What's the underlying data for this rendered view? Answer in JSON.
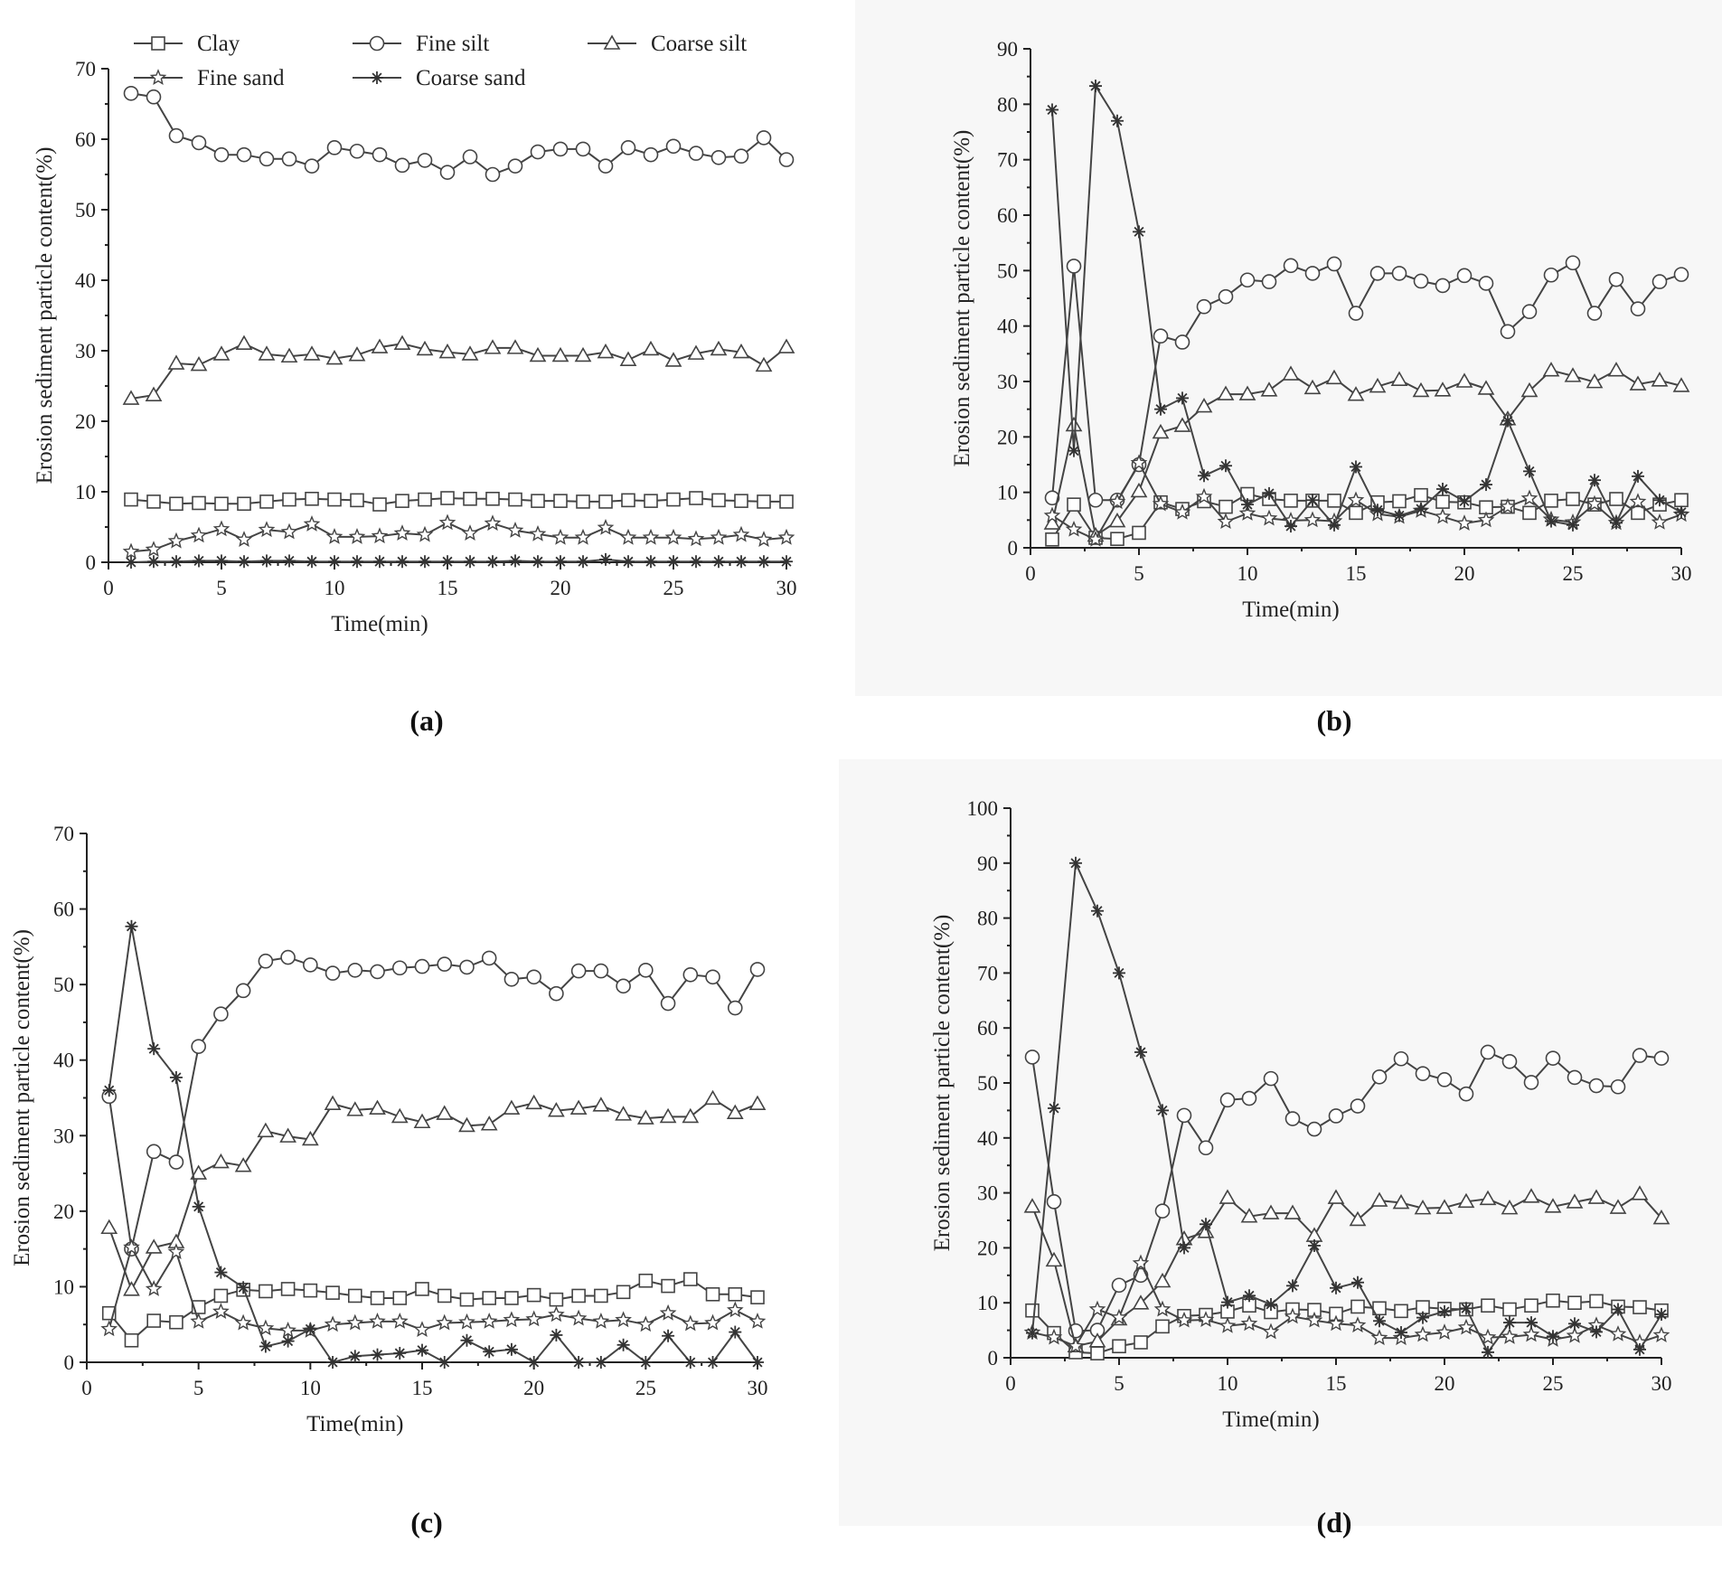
{
  "legend": {
    "items": [
      {
        "name": "Clay",
        "marker": "square"
      },
      {
        "name": "Fine silt",
        "marker": "circle"
      },
      {
        "name": "Coarse silt",
        "marker": "triangle"
      },
      {
        "name": "Fine sand",
        "marker": "star"
      },
      {
        "name": "Coarse sand",
        "marker": "asterisk"
      }
    ]
  },
  "chart_data": [
    {
      "id": "a",
      "type": "line",
      "caption": "(a)",
      "xlabel": "Time(min)",
      "ylabel": "Erosion sediment particle content(%)",
      "xlim": [
        0,
        30
      ],
      "ylim": [
        0,
        70
      ],
      "xticks": [
        0,
        5,
        10,
        15,
        20,
        25,
        30
      ],
      "yticks": [
        0,
        10,
        20,
        30,
        40,
        50,
        60,
        70
      ],
      "x": [
        1,
        2,
        3,
        4,
        5,
        6,
        7,
        8,
        9,
        10,
        11,
        12,
        13,
        14,
        15,
        16,
        17,
        18,
        19,
        20,
        21,
        22,
        23,
        24,
        25,
        26,
        27,
        28,
        29,
        30
      ],
      "series": [
        {
          "name": "Clay",
          "values": [
            8.9,
            8.6,
            8.3,
            8.4,
            8.3,
            8.3,
            8.6,
            8.9,
            9.0,
            8.9,
            8.8,
            8.2,
            8.7,
            8.9,
            9.1,
            9.0,
            9.0,
            8.9,
            8.7,
            8.7,
            8.6,
            8.6,
            8.8,
            8.7,
            8.9,
            9.1,
            8.8,
            8.7,
            8.6,
            8.6
          ]
        },
        {
          "name": "Fine silt",
          "values": [
            66.5,
            66.0,
            60.5,
            59.5,
            57.8,
            57.8,
            57.2,
            57.2,
            56.2,
            58.8,
            58.3,
            57.8,
            56.3,
            57.0,
            55.3,
            57.5,
            55.0,
            56.2,
            58.2,
            58.6,
            58.6,
            56.2,
            58.8,
            57.8,
            59.0,
            58.0,
            57.4,
            57.6,
            60.2,
            57.1
          ]
        },
        {
          "name": "Coarse silt",
          "values": [
            23.2,
            23.7,
            28.2,
            28.0,
            29.5,
            31.0,
            29.5,
            29.2,
            29.5,
            28.9,
            29.4,
            30.5,
            31.0,
            30.2,
            29.8,
            29.5,
            30.4,
            30.4,
            29.3,
            29.3,
            29.3,
            29.8,
            28.7,
            30.2,
            28.6,
            29.6,
            30.2,
            29.8,
            27.9,
            30.5
          ]
        },
        {
          "name": "Fine sand",
          "values": [
            1.5,
            1.8,
            3.0,
            3.8,
            4.7,
            3.2,
            4.6,
            4.3,
            5.4,
            3.6,
            3.6,
            3.7,
            4.1,
            3.9,
            5.6,
            4.1,
            5.5,
            4.5,
            4.0,
            3.5,
            3.5,
            4.9,
            3.5,
            3.5,
            3.5,
            3.3,
            3.5,
            3.9,
            3.2,
            3.5
          ]
        },
        {
          "name": "Coarse sand",
          "values": [
            0.0,
            0.1,
            0.1,
            0.2,
            0.2,
            0.1,
            0.2,
            0.2,
            0.1,
            0.1,
            0.1,
            0.1,
            0.1,
            0.1,
            0.1,
            0.1,
            0.1,
            0.2,
            0.1,
            0.1,
            0.1,
            0.4,
            0.1,
            0.1,
            0.1,
            0.1,
            0.1,
            0.1,
            0.1,
            0.1
          ]
        }
      ]
    },
    {
      "id": "b",
      "type": "line",
      "caption": "(b)",
      "xlabel": "Time(min)",
      "ylabel": "Erosion sediment particle content(%)",
      "xlim": [
        0,
        30
      ],
      "ylim": [
        0,
        90
      ],
      "xticks": [
        0,
        5,
        10,
        15,
        20,
        25,
        30
      ],
      "yticks": [
        0,
        10,
        20,
        30,
        40,
        50,
        60,
        70,
        80,
        90
      ],
      "x": [
        1,
        2,
        3,
        4,
        5,
        6,
        7,
        8,
        9,
        10,
        11,
        12,
        13,
        14,
        15,
        16,
        17,
        18,
        19,
        20,
        21,
        22,
        23,
        24,
        25,
        26,
        27,
        28,
        29,
        30
      ],
      "series": [
        {
          "name": "Clay",
          "values": [
            1.5,
            7.8,
            1.8,
            1.6,
            2.7,
            8.2,
            7.0,
            8.4,
            7.4,
            9.7,
            8.8,
            8.5,
            8.5,
            8.5,
            6.3,
            8.2,
            8.4,
            9.5,
            8.3,
            8.2,
            7.3,
            7.4,
            6.3,
            8.5,
            8.8,
            7.8,
            8.8,
            6.3,
            7.8,
            8.6
          ]
        },
        {
          "name": "Fine silt",
          "values": [
            9.0,
            50.8,
            8.6,
            8.6,
            15.0,
            38.2,
            37.1,
            43.5,
            45.3,
            48.3,
            48.0,
            50.9,
            49.5,
            51.2,
            42.3,
            49.5,
            49.5,
            48.1,
            47.3,
            49.1,
            47.7,
            39.0,
            42.6,
            49.2,
            51.4,
            42.3,
            48.4,
            43.1,
            48.0,
            49.3
          ]
        },
        {
          "name": "Coarse silt",
          "values": [
            4.4,
            22.1,
            2.2,
            4.8,
            10.2,
            20.8,
            22.0,
            25.5,
            27.7,
            27.7,
            28.4,
            31.3,
            28.8,
            30.6,
            27.6,
            29.1,
            30.3,
            28.3,
            28.4,
            30.0,
            28.7,
            23.2,
            28.3,
            32.0,
            31.0,
            29.9,
            32.0,
            29.5,
            30.2,
            29.2
          ]
        },
        {
          "name": "Fine sand",
          "values": [
            5.8,
            3.3,
            1.5,
            8.3,
            15.3,
            7.9,
            6.4,
            9.2,
            4.7,
            6.2,
            5.3,
            4.9,
            5.0,
            4.8,
            8.6,
            6.1,
            5.6,
            6.7,
            5.6,
            4.4,
            5.0,
            7.4,
            8.9,
            5.1,
            4.6,
            7.9,
            4.5,
            8.3,
            4.6,
            6.0
          ]
        },
        {
          "name": "Coarse sand",
          "values": [
            79.0,
            17.5,
            83.3,
            77.0,
            57.0,
            25.0,
            27.0,
            13.0,
            14.8,
            7.8,
            9.8,
            3.9,
            8.6,
            4.1,
            14.6,
            6.8,
            5.8,
            7.0,
            10.6,
            8.4,
            11.4,
            22.9,
            13.8,
            4.8,
            4.1,
            12.2,
            4.5,
            12.9,
            8.6,
            6.4
          ]
        }
      ]
    },
    {
      "id": "c",
      "type": "line",
      "caption": "(c)",
      "xlabel": "Time(min)",
      "ylabel": "Erosion sediment particle content(%)",
      "xlim": [
        0,
        30
      ],
      "ylim": [
        0,
        70
      ],
      "xticks": [
        0,
        5,
        10,
        15,
        20,
        25,
        30
      ],
      "yticks": [
        0,
        10,
        20,
        30,
        40,
        50,
        60,
        70
      ],
      "x": [
        1,
        2,
        3,
        4,
        5,
        6,
        7,
        8,
        9,
        10,
        11,
        12,
        13,
        14,
        15,
        16,
        17,
        18,
        19,
        20,
        21,
        22,
        23,
        24,
        25,
        26,
        27,
        28,
        29,
        30
      ],
      "series": [
        {
          "name": "Clay",
          "values": [
            6.5,
            2.9,
            5.5,
            5.3,
            7.3,
            8.8,
            9.6,
            9.4,
            9.7,
            9.5,
            9.2,
            8.8,
            8.5,
            8.5,
            9.7,
            8.8,
            8.3,
            8.5,
            8.5,
            8.9,
            8.3,
            8.8,
            8.8,
            9.3,
            10.8,
            10.1,
            11.0,
            9.0,
            9.0,
            8.6
          ]
        },
        {
          "name": "Fine silt",
          "values": [
            35.2,
            15.0,
            27.9,
            26.5,
            41.8,
            46.1,
            49.2,
            53.1,
            53.6,
            52.6,
            51.5,
            51.9,
            51.7,
            52.2,
            52.4,
            52.7,
            52.3,
            53.5,
            50.7,
            51.0,
            48.8,
            51.8,
            51.8,
            49.8,
            51.9,
            47.5,
            51.3,
            51.0,
            46.9,
            52.0
          ]
        },
        {
          "name": "Coarse silt",
          "values": [
            17.8,
            9.6,
            15.2,
            15.9,
            25.0,
            26.5,
            26.0,
            30.6,
            29.9,
            29.5,
            34.2,
            33.4,
            33.6,
            32.5,
            31.8,
            32.9,
            31.3,
            31.5,
            33.6,
            34.3,
            33.3,
            33.6,
            34.0,
            32.8,
            32.3,
            32.5,
            32.5,
            34.9,
            33.0,
            34.2
          ]
        },
        {
          "name": "Fine sand",
          "values": [
            4.4,
            15.2,
            9.7,
            14.6,
            5.4,
            6.7,
            5.2,
            4.5,
            4.2,
            4.2,
            5.0,
            5.2,
            5.4,
            5.4,
            4.3,
            5.2,
            5.3,
            5.4,
            5.6,
            5.7,
            6.3,
            5.8,
            5.4,
            5.6,
            5.0,
            6.5,
            5.1,
            5.2,
            6.9,
            5.4
          ]
        },
        {
          "name": "Coarse sand",
          "values": [
            36.0,
            57.7,
            41.5,
            37.7,
            20.6,
            11.9,
            9.9,
            2.1,
            2.8,
            4.4,
            0.0,
            0.8,
            1.0,
            1.2,
            1.6,
            0.0,
            2.9,
            1.4,
            1.7,
            0.0,
            3.6,
            0.0,
            0.0,
            2.3,
            0.0,
            3.5,
            0.0,
            0.0,
            4.0,
            0.0
          ]
        }
      ]
    },
    {
      "id": "d",
      "type": "line",
      "caption": "(d)",
      "xlabel": "Time(min)",
      "ylabel": "Erosion sediment particle content(%)",
      "xlim": [
        0,
        30
      ],
      "ylim": [
        0,
        100
      ],
      "xticks": [
        0,
        5,
        10,
        15,
        20,
        25,
        30
      ],
      "yticks": [
        0,
        10,
        20,
        30,
        40,
        50,
        60,
        70,
        80,
        90,
        100
      ],
      "x": [
        1,
        2,
        3,
        4,
        5,
        6,
        7,
        8,
        9,
        10,
        11,
        12,
        13,
        14,
        15,
        16,
        17,
        18,
        19,
        20,
        21,
        22,
        23,
        24,
        25,
        26,
        27,
        28,
        29,
        30
      ],
      "series": [
        {
          "name": "Clay",
          "values": [
            8.6,
            4.5,
            1.0,
            0.8,
            2.1,
            2.8,
            5.7,
            7.6,
            7.8,
            8.4,
            9.5,
            8.3,
            8.8,
            8.7,
            8.0,
            9.3,
            9.0,
            8.5,
            9.2,
            8.9,
            8.8,
            9.5,
            8.8,
            9.5,
            10.4,
            10.0,
            10.3,
            9.3,
            9.2,
            8.6
          ]
        },
        {
          "name": "Fine silt",
          "values": [
            54.7,
            28.4,
            4.9,
            5.0,
            13.2,
            15.0,
            26.7,
            44.1,
            38.2,
            46.9,
            47.2,
            50.8,
            43.5,
            41.6,
            44.0,
            45.8,
            51.1,
            54.4,
            51.7,
            50.6,
            48.0,
            55.6,
            53.9,
            50.1,
            54.5,
            51.0,
            49.5,
            49.3,
            55.0,
            54.5
          ]
        },
        {
          "name": "Coarse silt",
          "values": [
            27.5,
            17.7,
            2.1,
            3.0,
            7.0,
            9.9,
            13.9,
            21.6,
            22.9,
            29.1,
            25.7,
            26.3,
            26.3,
            22.2,
            29.1,
            25.1,
            28.6,
            28.2,
            27.2,
            27.3,
            28.4,
            28.9,
            27.2,
            29.3,
            27.5,
            28.3,
            29.1,
            27.3,
            29.8,
            25.4
          ]
        },
        {
          "name": "Fine sand",
          "values": [
            4.6,
            3.7,
            2.1,
            8.8,
            7.3,
            17.2,
            8.8,
            6.8,
            6.9,
            5.8,
            6.2,
            4.7,
            7.5,
            6.8,
            6.2,
            5.9,
            3.6,
            3.6,
            4.2,
            4.6,
            5.5,
            3.7,
            3.8,
            4.2,
            3.3,
            4.0,
            5.9,
            4.3,
            2.8,
            4.1
          ]
        },
        {
          "name": "Coarse sand",
          "values": [
            4.5,
            45.4,
            90.0,
            81.3,
            70.0,
            55.6,
            45.0,
            20.0,
            24.3,
            10.1,
            11.3,
            9.7,
            13.1,
            20.4,
            12.7,
            13.7,
            6.7,
            4.6,
            7.3,
            8.4,
            9.0,
            1.0,
            6.4,
            6.4,
            3.9,
            6.2,
            4.7,
            8.8,
            1.5,
            7.9
          ]
        }
      ]
    }
  ]
}
